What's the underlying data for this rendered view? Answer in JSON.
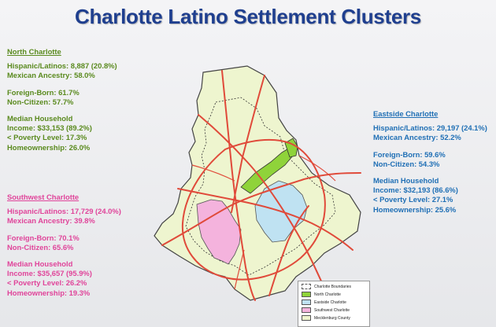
{
  "title": "Charlotte Latino Settlement Clusters",
  "regions": {
    "north": {
      "name": "North Charlotte",
      "lines": [
        "Hispanic/Latinos:  8,887 (20.8%)",
        "Mexican Ancestry:  58.0%",
        "",
        "Foreign-Born:  61.7%",
        "Non-Citizen:  57.7%",
        "",
        "Median Household",
        "Income:  $33,153 (89.2%)",
        "< Poverty Level:  17.3%",
        "Homeownership:  26.0%"
      ],
      "color": "#5a8a1e"
    },
    "east": {
      "name": "Eastside Charlotte",
      "lines": [
        "Hispanic/Latinos:  29,197 (24.1%)",
        "Mexican Ancestry:  52.2%",
        "",
        "Foreign-Born:  59.6%",
        "Non-Citizen:  54.3%",
        "",
        "Median Household",
        "Income:  $32,193 (86.6%)",
        "< Poverty Level:  27.1%",
        "Homeownership:  25.6%"
      ],
      "color": "#1f6fb5"
    },
    "south": {
      "name": "Southwest Charlotte",
      "lines": [
        "Hispanic/Latinos:  17,729 (24.0%)",
        "Mexican Ancestry:  39.8%",
        "",
        "Foreign-Born:  70.1%",
        "Non-Citizen:  65.6%",
        "",
        "Median Household",
        "Income:  $35,657 (95.9%)",
        "< Poverty Level:  26.2%",
        "Homeownership:  19.3%"
      ],
      "color": "#e0449a"
    }
  },
  "legend": {
    "items": [
      {
        "label": "Charlotte Boundaries",
        "fill": "#ffffff",
        "dashed": true
      },
      {
        "label": "North Charlotte",
        "fill": "#8fd33a"
      },
      {
        "label": "Eastside Charlotte",
        "fill": "#bfe2f2"
      },
      {
        "label": "Southwest Charlotte",
        "fill": "#f4b3dd"
      },
      {
        "label": "Mecklenburg County",
        "fill": "#eef5cf"
      }
    ]
  },
  "colors": {
    "county": "#eef5cf",
    "north_cluster": "#8fd33a",
    "east_cluster": "#bfe2f2",
    "southwest_cluster": "#f4b3dd",
    "roads": "#e04a3a"
  }
}
